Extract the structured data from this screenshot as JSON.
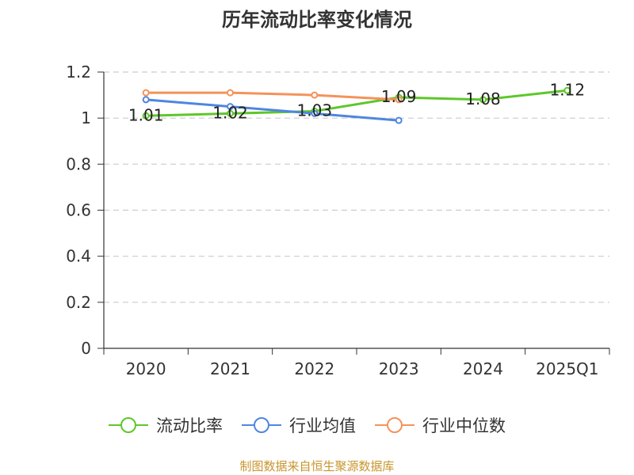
{
  "chart_data": {
    "type": "line",
    "title": "历年流动比率变化情况",
    "categories": [
      "2020",
      "2021",
      "2022",
      "2023",
      "2024",
      "2025Q1"
    ],
    "ylim": [
      0,
      1.2
    ],
    "yticks": [
      "0",
      "0.2",
      "0.4",
      "0.6",
      "0.8",
      "1",
      "1.2"
    ],
    "grid": true,
    "legend_position": "bottom",
    "series": [
      {
        "name": "流动比率",
        "color": "#5ec72a",
        "values": [
          1.01,
          1.02,
          1.03,
          1.09,
          1.08,
          1.12
        ],
        "labels": [
          "1.01",
          "1.02",
          "1.03",
          "1.09",
          "1.08",
          "1.12"
        ]
      },
      {
        "name": "行业均值",
        "color": "#4f86e0",
        "values": [
          1.08,
          1.05,
          1.02,
          0.99,
          null,
          null
        ]
      },
      {
        "name": "行业中位数",
        "color": "#f5925a",
        "values": [
          1.11,
          1.11,
          1.1,
          1.08,
          null,
          null
        ]
      }
    ],
    "source": "制图数据来自恒生聚源数据库"
  }
}
